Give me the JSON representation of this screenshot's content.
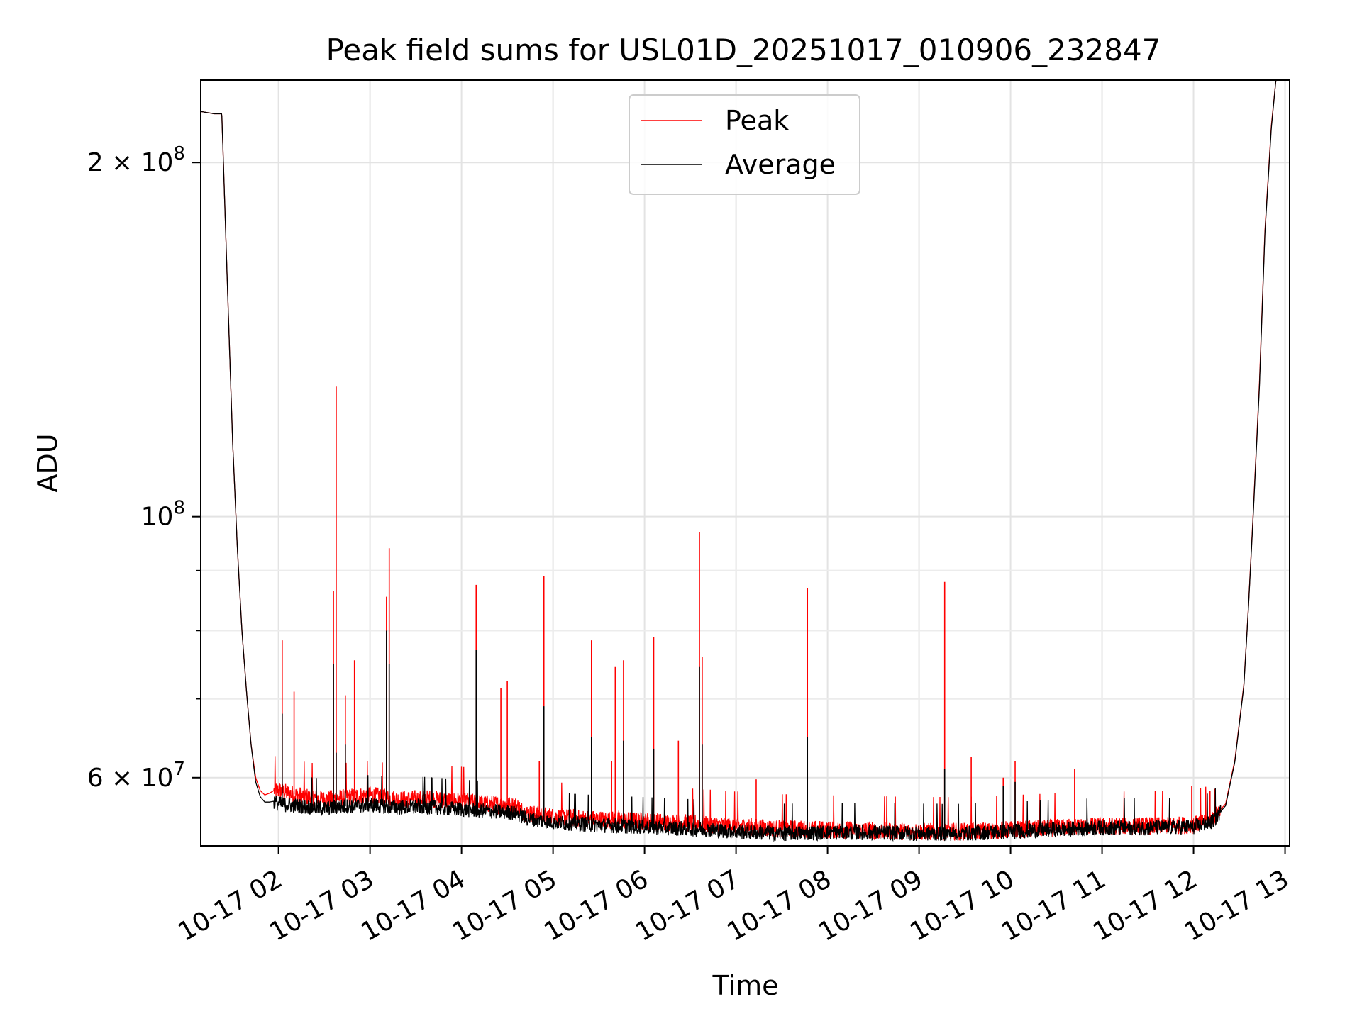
{
  "chart_data": {
    "type": "line",
    "title": "Peak field sums for USL01D_20251017_010906_232847",
    "xlabel": "Time",
    "ylabel": "ADU",
    "yscale": "log",
    "grid": true,
    "legend_location": "upper center",
    "xlim_hours": [
      1.15,
      13.05
    ],
    "ylim": [
      52500000,
      235000000
    ],
    "x_ticks": [
      {
        "hour": 2,
        "label": "10-17 02"
      },
      {
        "hour": 3,
        "label": "10-17 03"
      },
      {
        "hour": 4,
        "label": "10-17 04"
      },
      {
        "hour": 5,
        "label": "10-17 05"
      },
      {
        "hour": 6,
        "label": "10-17 06"
      },
      {
        "hour": 7,
        "label": "10-17 07"
      },
      {
        "hour": 8,
        "label": "10-17 08"
      },
      {
        "hour": 9,
        "label": "10-17 09"
      },
      {
        "hour": 10,
        "label": "10-17 10"
      },
      {
        "hour": 11,
        "label": "10-17 11"
      },
      {
        "hour": 12,
        "label": "10-17 12"
      },
      {
        "hour": 13,
        "label": "10-17 13"
      }
    ],
    "y_ticks": [
      {
        "value": 60000000,
        "base": "6 × 10",
        "exp": "7"
      },
      {
        "value": 100000000,
        "base": "10",
        "exp": "8"
      },
      {
        "value": 200000000,
        "base": "2 × 10",
        "exp": "8"
      }
    ],
    "y_minor_ticks": [
      70000000,
      80000000,
      90000000
    ],
    "series": [
      {
        "name": "Peak",
        "color": "#ff0000",
        "x": [
          1.15,
          1.3,
          1.38,
          1.45,
          1.5,
          1.55,
          1.6,
          1.65,
          1.7,
          1.75,
          1.8,
          1.85,
          1.9,
          1.95,
          2.0,
          2.2,
          2.5,
          2.8,
          3.0,
          3.3,
          3.6,
          4.0,
          4.3,
          4.6,
          4.7,
          5.0,
          5.5,
          6.0,
          6.5,
          7.0,
          7.5,
          8.0,
          8.5,
          9.0,
          9.5,
          10.0,
          10.5,
          11.0,
          11.5,
          12.0,
          12.2,
          12.35,
          12.45,
          12.55,
          12.6,
          12.65,
          12.72,
          12.78,
          12.85,
          12.9
        ],
        "values": [
          221000000,
          220000000,
          220000000,
          150000000,
          115000000,
          94000000,
          80000000,
          71000000,
          64000000,
          60000000,
          58500000,
          58000000,
          58200000,
          58500000,
          58500000,
          58000000,
          57500000,
          57800000,
          58000000,
          57500000,
          57600000,
          57300000,
          57000000,
          56800000,
          56000000,
          55600000,
          55300000,
          55100000,
          54900000,
          54600000,
          54300000,
          54200000,
          54100000,
          54000000,
          54000000,
          54200000,
          54400000,
          54600000,
          54600000,
          54700000,
          55300000,
          57000000,
          62000000,
          72000000,
          84000000,
          100000000,
          130000000,
          175000000,
          215000000,
          235000000
        ],
        "spikes": [
          {
            "x": 2.04,
            "value": 78500000
          },
          {
            "x": 2.17,
            "value": 71000000
          },
          {
            "x": 2.6,
            "value": 86500000
          },
          {
            "x": 2.63,
            "value": 129000000
          },
          {
            "x": 2.73,
            "value": 70500000
          },
          {
            "x": 2.83,
            "value": 75500000
          },
          {
            "x": 3.18,
            "value": 85500000
          },
          {
            "x": 3.21,
            "value": 94000000
          },
          {
            "x": 4.16,
            "value": 87500000
          },
          {
            "x": 4.43,
            "value": 71500000
          },
          {
            "x": 4.5,
            "value": 72500000
          },
          {
            "x": 4.85,
            "value": 62000000
          },
          {
            "x": 4.9,
            "value": 89000000
          },
          {
            "x": 5.42,
            "value": 78500000
          },
          {
            "x": 5.64,
            "value": 62000000
          },
          {
            "x": 5.68,
            "value": 74500000
          },
          {
            "x": 5.77,
            "value": 75500000
          },
          {
            "x": 6.1,
            "value": 79000000
          },
          {
            "x": 6.37,
            "value": 64500000
          },
          {
            "x": 6.6,
            "value": 97000000
          },
          {
            "x": 6.63,
            "value": 76000000
          },
          {
            "x": 7.22,
            "value": 59800000
          },
          {
            "x": 7.78,
            "value": 87000000
          },
          {
            "x": 9.28,
            "value": 88000000
          },
          {
            "x": 9.57,
            "value": 62500000
          },
          {
            "x": 9.92,
            "value": 60000000
          },
          {
            "x": 10.05,
            "value": 62000000
          },
          {
            "x": 10.7,
            "value": 61000000
          },
          {
            "x": 11.98,
            "value": 59000000
          },
          {
            "x": 12.18,
            "value": 58500000
          },
          {
            "x": 12.23,
            "value": 58700000
          }
        ]
      },
      {
        "name": "Average",
        "color": "#000000",
        "x": [
          1.15,
          1.3,
          1.38,
          1.45,
          1.5,
          1.55,
          1.6,
          1.65,
          1.7,
          1.75,
          1.8,
          1.85,
          1.9,
          1.95,
          2.0,
          2.2,
          2.5,
          2.8,
          3.0,
          3.3,
          3.6,
          4.0,
          4.3,
          4.6,
          4.7,
          5.0,
          5.5,
          6.0,
          6.5,
          7.0,
          7.5,
          8.0,
          8.5,
          9.0,
          9.5,
          10.0,
          10.5,
          11.0,
          11.5,
          12.0,
          12.2,
          12.35,
          12.45,
          12.55,
          12.6,
          12.65,
          12.72,
          12.78,
          12.85,
          12.9
        ],
        "values": [
          221000000,
          220000000,
          220000000,
          150000000,
          115000000,
          94000000,
          80000000,
          71000000,
          64000000,
          59500000,
          57800000,
          57200000,
          57200000,
          57300000,
          57000000,
          56800000,
          56500000,
          56800000,
          56900000,
          56600000,
          56700000,
          56400000,
          56200000,
          56000000,
          55400000,
          55000000,
          54700000,
          54500000,
          54300000,
          54000000,
          53800000,
          53900000,
          53900000,
          53800000,
          53800000,
          54000000,
          54200000,
          54400000,
          54400000,
          54500000,
          55000000,
          56800000,
          61800000,
          71800000,
          83800000,
          99500000,
          129000000,
          174000000,
          214000000,
          235000000
        ],
        "spikes": [
          {
            "x": 2.04,
            "value": 68000000
          },
          {
            "x": 2.6,
            "value": 75000000
          },
          {
            "x": 2.63,
            "value": 63000000
          },
          {
            "x": 2.73,
            "value": 64000000
          },
          {
            "x": 3.18,
            "value": 80000000
          },
          {
            "x": 3.21,
            "value": 75000000
          },
          {
            "x": 4.16,
            "value": 77000000
          },
          {
            "x": 4.9,
            "value": 69000000
          },
          {
            "x": 5.42,
            "value": 65000000
          },
          {
            "x": 5.77,
            "value": 64500000
          },
          {
            "x": 6.1,
            "value": 63500000
          },
          {
            "x": 6.6,
            "value": 74500000
          },
          {
            "x": 6.63,
            "value": 64000000
          },
          {
            "x": 7.78,
            "value": 65000000
          },
          {
            "x": 9.28,
            "value": 61000000
          },
          {
            "x": 9.92,
            "value": 59000000
          },
          {
            "x": 10.05,
            "value": 59500000
          }
        ]
      }
    ]
  }
}
